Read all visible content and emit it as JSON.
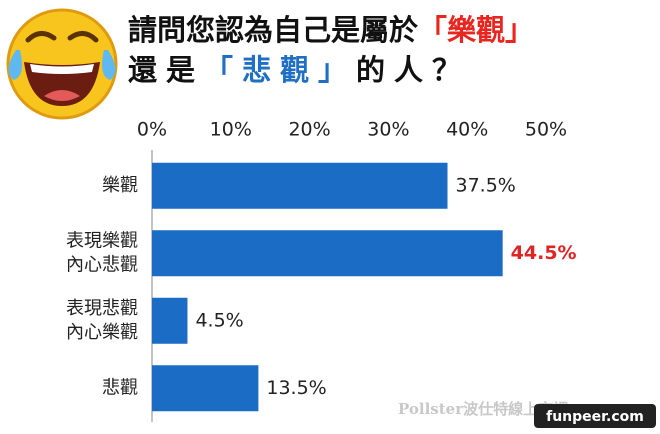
{
  "chart_data": {
    "type": "bar",
    "orientation": "horizontal",
    "title_lines": [
      [
        {
          "text": "請問您認為自己是屬於",
          "color": "#111111"
        },
        {
          "text": "「樂觀」",
          "color": "#e8261f"
        }
      ],
      [
        {
          "text": "還是",
          "color": "#111111"
        },
        {
          "text": "「悲觀」",
          "color": "#1f6fc5"
        },
        {
          "text": "的人？",
          "color": "#111111"
        }
      ]
    ],
    "categories": [
      [
        "樂觀"
      ],
      [
        "表現樂觀",
        "內心悲觀"
      ],
      [
        "表現悲觀",
        "內心樂觀"
      ],
      [
        "悲觀"
      ]
    ],
    "values": [
      37.5,
      44.5,
      4.5,
      13.5
    ],
    "value_labels": [
      "37.5%",
      "44.5%",
      "4.5%",
      "13.5%"
    ],
    "value_label_colors": [
      "#222222",
      "#e02424",
      "#222222",
      "#222222"
    ],
    "color": "#1a6cc4",
    "xlim": [
      0,
      50
    ],
    "xticks": [
      {
        "value": 0,
        "label": "0%"
      },
      {
        "value": 10,
        "label": "10%"
      },
      {
        "value": 20,
        "label": "20%"
      },
      {
        "value": 30,
        "label": "30%"
      },
      {
        "value": 40,
        "label": "40%"
      },
      {
        "value": 50,
        "label": "50%"
      }
    ],
    "grid": false
  },
  "watermarks": [
    "Pollster波仕特線上市調",
    "funpeer.com"
  ]
}
